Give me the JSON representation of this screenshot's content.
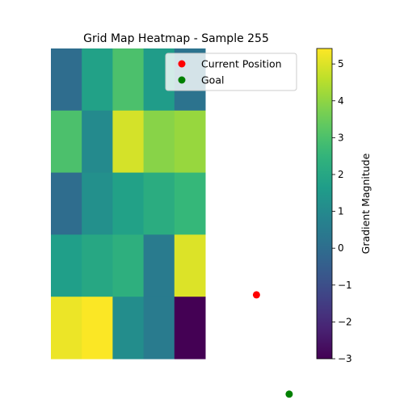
{
  "chart_data": {
    "type": "heatmap",
    "title": "Grid Map Heatmap - Sample 255",
    "grid": [
      [
        0.0,
        1.8,
        3.0,
        1.6,
        0.2
      ],
      [
        3.0,
        1.0,
        4.9,
        3.9,
        4.1
      ],
      [
        0.0,
        1.2,
        1.8,
        2.2,
        2.6
      ],
      [
        1.7,
        2.0,
        2.3,
        0.5,
        5.0
      ],
      [
        5.2,
        5.4,
        1.1,
        0.5,
        -3.0
      ]
    ],
    "colormap": "viridis",
    "colorbar": {
      "label": "Gradient Magnitude",
      "range": [
        -3.0,
        5.42
      ],
      "ticks": [
        -3,
        -2,
        -1,
        0,
        1,
        2,
        3,
        4,
        5
      ],
      "tick_labels": [
        "−3",
        "−2",
        "−1",
        "0",
        "1",
        "2",
        "3",
        "4",
        "5"
      ]
    },
    "markers": [
      {
        "label": "Current Position",
        "color": "#ff0000",
        "col": 6.66,
        "row": 3.97
      },
      {
        "label": "Goal",
        "color": "#008000",
        "col": 7.72,
        "row": 5.57
      }
    ],
    "legend_location": "upper-right",
    "grid_lines": false,
    "axes_visible": false
  }
}
